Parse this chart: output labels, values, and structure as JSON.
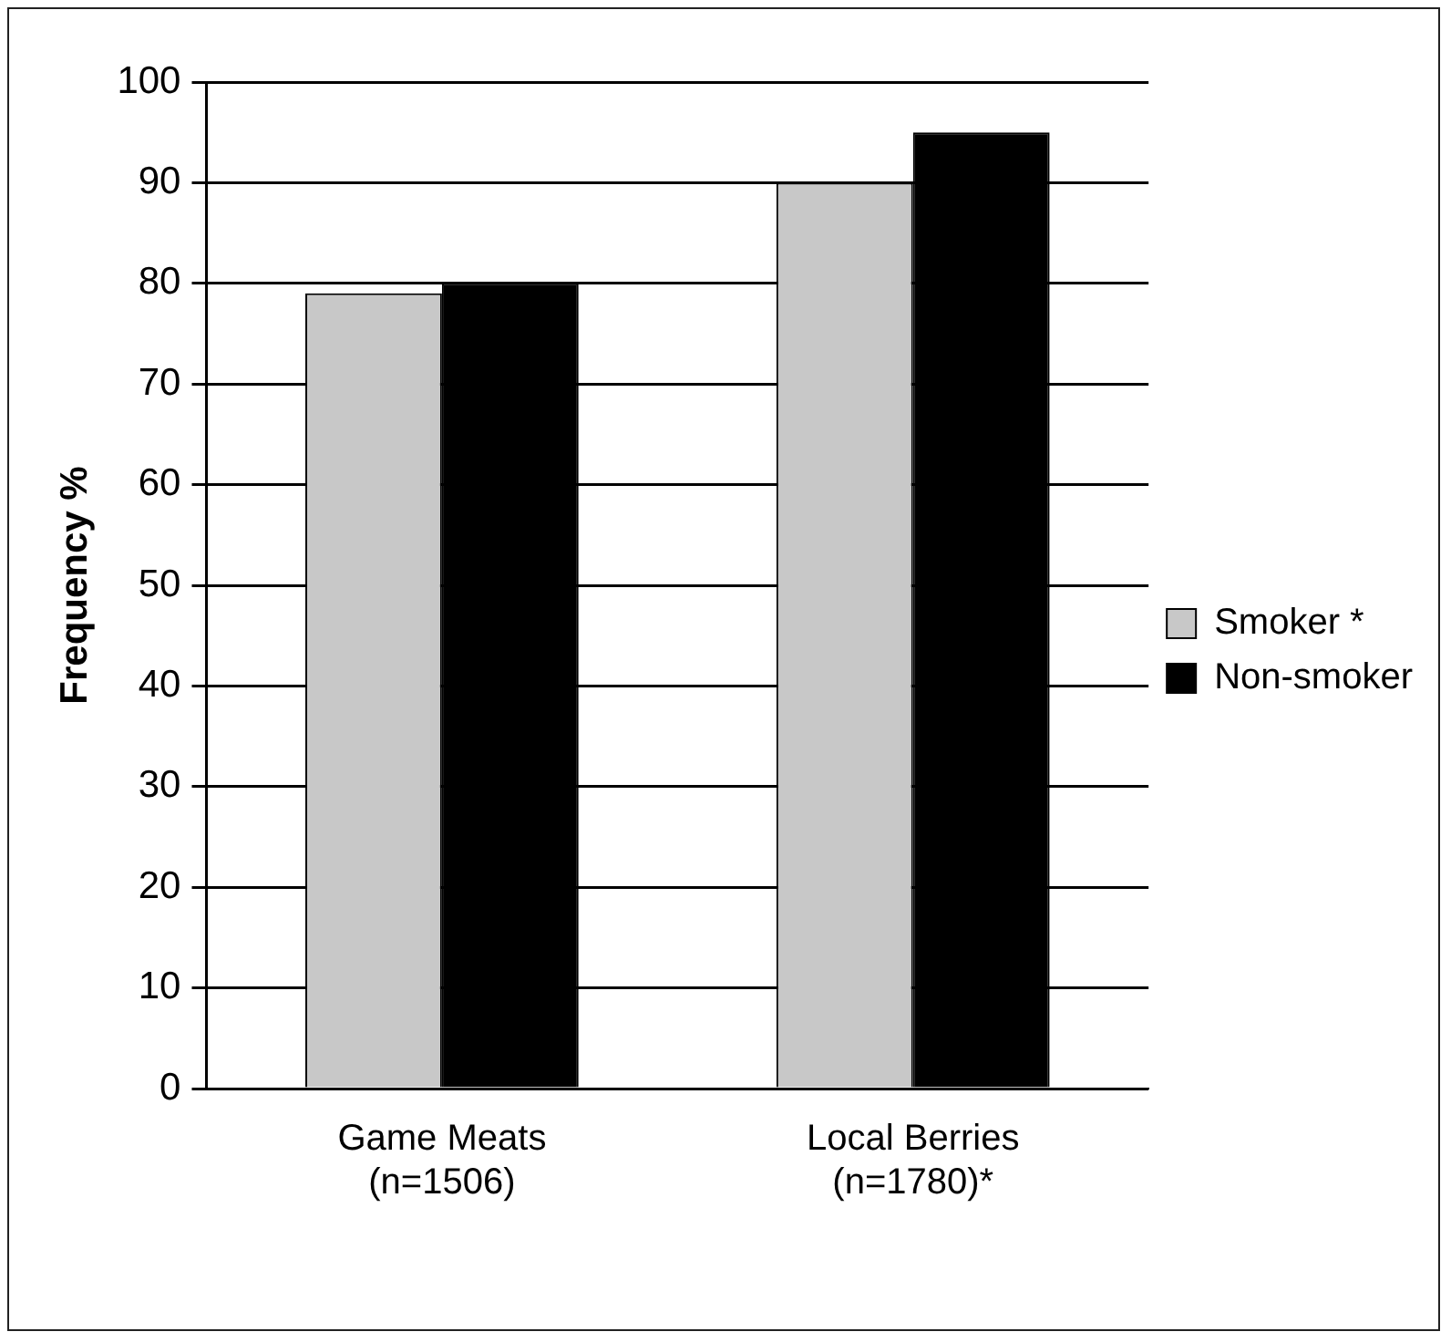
{
  "chart_data": {
    "type": "bar",
    "ylabel": "Frequency %",
    "categories": [
      "Game Meats\n(n=1506)",
      "Local Berries\n(n=1780)*"
    ],
    "series": [
      {
        "name": "Smoker *",
        "color": "#c8c8c8",
        "values": [
          79,
          90
        ]
      },
      {
        "name": "Non-smoker",
        "color": "#000000",
        "values": [
          80,
          95
        ]
      }
    ],
    "ylim": [
      0,
      100
    ],
    "yticks": [
      0,
      10,
      20,
      30,
      40,
      50,
      60,
      70,
      80,
      90,
      100
    ],
    "grid": "y",
    "legend": "right"
  }
}
